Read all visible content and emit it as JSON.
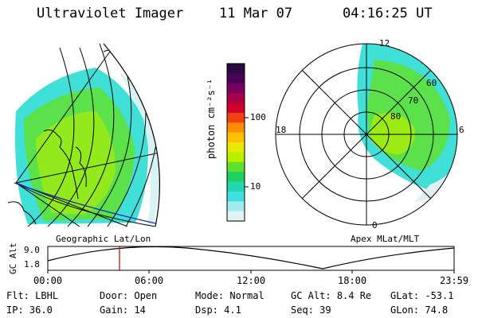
{
  "header": {
    "instrument": "Ultraviolet Imager",
    "date": "11 Mar 07",
    "time": "04:16:25 UT"
  },
  "colorbar": {
    "unit_label": "photon cm⁻²s⁻¹",
    "ticks": [
      "100",
      "10"
    ],
    "colors": [
      "#2b0a3d",
      "#4a0058",
      "#7a005e",
      "#a6004a",
      "#d0002a",
      "#f04010",
      "#ff8c00",
      "#ffc000",
      "#e8e800",
      "#b8f000",
      "#60e030",
      "#20d060",
      "#20d8b0",
      "#40e0e0",
      "#a0ecec",
      "#e0f4f4"
    ]
  },
  "left_map": {
    "label": "Geographic Lat/Lon"
  },
  "right_map": {
    "label": "Apex MLat/MLT",
    "mlt_labels": [
      "12",
      "18",
      "6",
      "0"
    ],
    "lat_labels": [
      "60",
      "70",
      "80"
    ]
  },
  "altitude_plot": {
    "ylabel": "GC Alt",
    "yticks": [
      "9.0",
      "1.8"
    ],
    "xticks": [
      "00:00",
      "06:00",
      "12:00",
      "18:00",
      "23:59"
    ],
    "marker_color": "#d00000"
  },
  "status": {
    "row1": [
      {
        "key": "Flt:",
        "value": "LBHL"
      },
      {
        "key": "Door:",
        "value": "Open"
      },
      {
        "key": "Mode:",
        "value": "Normal"
      },
      {
        "key": "GC Alt:",
        "value": "8.4 Re"
      },
      {
        "key": "GLat:",
        "value": "-53.1"
      }
    ],
    "row2": [
      {
        "key": "IP:",
        "value": "36.0"
      },
      {
        "key": "Gain:",
        "value": "14"
      },
      {
        "key": "Dsp:",
        "value": "4.1"
      },
      {
        "key": "Seq:",
        "value": "39"
      },
      {
        "key": "GLon:",
        "value": "74.8"
      }
    ]
  }
}
